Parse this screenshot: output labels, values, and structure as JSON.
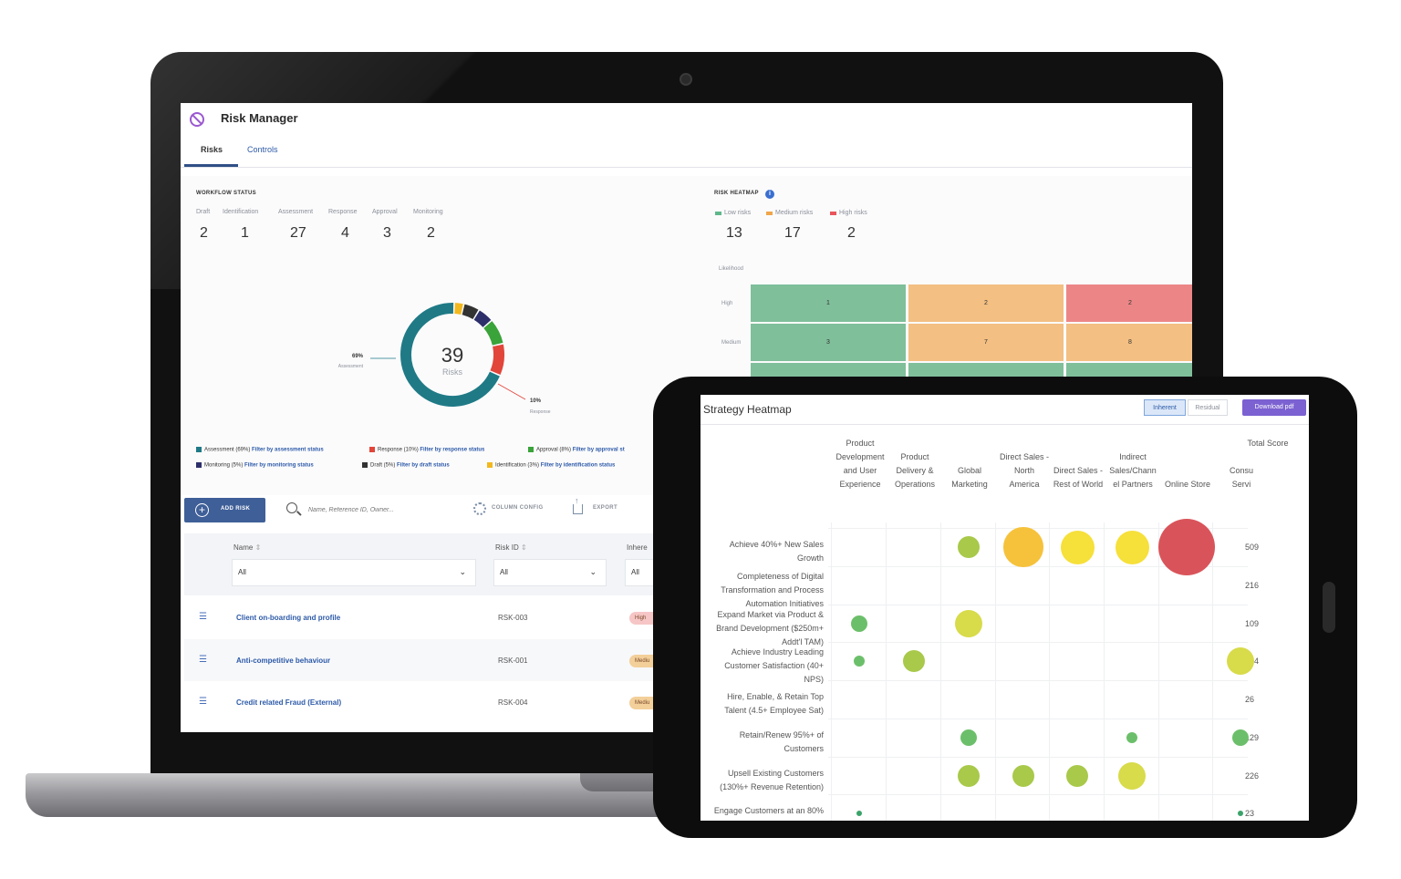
{
  "app": {
    "title": "Risk Manager",
    "tabs": [
      "Risks",
      "Controls"
    ]
  },
  "workflow": {
    "label": "WORKFLOW STATUS",
    "stages": [
      {
        "label": "Draft",
        "value": "2"
      },
      {
        "label": "Identification",
        "value": "1"
      },
      {
        "label": "Assessment",
        "value": "27"
      },
      {
        "label": "Response",
        "value": "4"
      },
      {
        "label": "Approval",
        "value": "3"
      },
      {
        "label": "Monitoring",
        "value": "2"
      }
    ]
  },
  "donut": {
    "total": "39",
    "unit": "Risks",
    "left_callout_pct": "69%",
    "left_callout_label": "Assessment",
    "right_callout_pct": "10%",
    "right_callout_label": "Response",
    "segments": [
      {
        "name": "Assessment",
        "value": 69,
        "color": "#1f7a86"
      },
      {
        "name": "Response",
        "value": 10,
        "color": "#e2453a"
      },
      {
        "name": "Approval",
        "value": 8,
        "color": "#3aa33a"
      },
      {
        "name": "Monitoring",
        "value": 5,
        "color": "#2d2f6b"
      },
      {
        "name": "Draft",
        "value": 5,
        "color": "#333333"
      },
      {
        "name": "Identification",
        "value": 3,
        "color": "#f2b81f"
      }
    ],
    "legend": [
      {
        "text": "Assessment (69%)",
        "link": "Filter by assessment status",
        "color": "#1f7a86"
      },
      {
        "text": "Response (10%)",
        "link": "Filter by response status",
        "color": "#e2453a"
      },
      {
        "text": "Approval (8%)",
        "link": "Filter by approval st",
        "color": "#3aa33a"
      },
      {
        "text": "Monitoring (5%)",
        "link": "Filter by monitoring status",
        "color": "#2d2f6b"
      },
      {
        "text": "Draft (5%)",
        "link": "Filter by draft status",
        "color": "#333333"
      },
      {
        "text": "Identification (3%)",
        "link": "Filter by identification status",
        "color": "#f2b81f"
      }
    ]
  },
  "risk_heatmap": {
    "label": "RISK HEATMAP",
    "legend": [
      {
        "label": "Low risks",
        "value": "13",
        "color": "#5fb88a"
      },
      {
        "label": "Medium risks",
        "value": "17",
        "color": "#f0a64a"
      },
      {
        "label": "High risks",
        "value": "2",
        "color": "#e8555a"
      }
    ],
    "y_axis": "Likelihood",
    "rows": [
      {
        "label": "High",
        "cells": [
          "1",
          "2",
          "2"
        ]
      },
      {
        "label": "Medium",
        "cells": [
          "3",
          "7",
          "8"
        ]
      }
    ],
    "colors": {
      "green": "#7fbf9a",
      "orange": "#f3bf82",
      "red": "#ec8686"
    }
  },
  "toolbar": {
    "add_label": "ADD RISK",
    "search_placeholder": "Name, Reference ID, Owner...",
    "column_config": "COLUMN CONFIG",
    "export": "EXPORT"
  },
  "table": {
    "headers": {
      "name": "Name",
      "risk_id": "Risk ID",
      "inherent": "Inhere"
    },
    "filters": {
      "name": "All",
      "risk_id": "All",
      "inherent": "All"
    },
    "rows": [
      {
        "name": "Client on-boarding and profile",
        "id": "RSK-003",
        "badge": "High",
        "badge_color": "#f6c6c6"
      },
      {
        "name": "Anti-competitive behaviour",
        "id": "RSK-001",
        "badge": "Mediu",
        "badge_color": "#f3cf9a"
      },
      {
        "name": "Credit related Fraud (External)",
        "id": "RSK-004",
        "badge": "Mediu",
        "badge_color": "#f3cf9a"
      }
    ]
  },
  "strategy_heatmap": {
    "title": "Strategy Heatmap",
    "toggle_inherent": "Inherent",
    "toggle_residual": "Residual",
    "download": "Download pdf",
    "columns": [
      "Product\nDevelopment\nand User\nExperience",
      "Product\nDelivery &\nOperations",
      "Global\nMarketing",
      "Direct Sales -\nNorth\nAmerica",
      "Direct Sales -\nRest of World",
      "Indirect\nSales/Chann\nel Partners",
      "Online Store",
      "Consu\nServi"
    ],
    "total_score_label": "Total Score",
    "rows": [
      {
        "label": "Achieve 40%+ New Sales\nGrowth",
        "score": "509"
      },
      {
        "label": "Completeness of Digital\nTransformation and Process\nAutomation Initiatives",
        "score": "216"
      },
      {
        "label": "Expand Market via Product &\nBrand Development ($250m+\nAddt'l TAM)",
        "score": "109"
      },
      {
        "label": "Achieve Industry Leading\nCustomer Satisfaction (40+\nNPS)",
        "score": "194"
      },
      {
        "label": "Hire, Enable, & Retain Top\nTalent (4.5+ Employee Sat)",
        "score": "26"
      },
      {
        "label": "Retain/Renew 95%+ of\nCustomers",
        "score": "129"
      },
      {
        "label": "Upsell Existing Customers\n(130%+ Revenue Retention)",
        "score": "226"
      },
      {
        "label": "Engage Customers at an 80%",
        "score": "23"
      }
    ],
    "bubbles": [
      {
        "row": 0,
        "col": 2,
        "size": 3,
        "color": "#a8c94a"
      },
      {
        "row": 0,
        "col": 3,
        "size": 6,
        "color": "#f6c23c"
      },
      {
        "row": 0,
        "col": 4,
        "size": 5,
        "color": "#f6e03a"
      },
      {
        "row": 0,
        "col": 5,
        "size": 5,
        "color": "#f6e03a"
      },
      {
        "row": 0,
        "col": 6,
        "size": 9,
        "color": "#d9545a"
      },
      {
        "row": 2,
        "col": 0,
        "size": 2,
        "color": "#6cbf6a"
      },
      {
        "row": 2,
        "col": 2,
        "size": 4,
        "color": "#d8db4a"
      },
      {
        "row": 3,
        "col": 0,
        "size": 1,
        "color": "#6cbf6a"
      },
      {
        "row": 3,
        "col": 1,
        "size": 3,
        "color": "#a8c94a"
      },
      {
        "row": 3,
        "col": 7,
        "size": 4,
        "color": "#d8db4a"
      },
      {
        "row": 5,
        "col": 2,
        "size": 2,
        "color": "#6cbf6a"
      },
      {
        "row": 5,
        "col": 5,
        "size": 1,
        "color": "#6cbf6a"
      },
      {
        "row": 5,
        "col": 7,
        "size": 2,
        "color": "#6cbf6a"
      },
      {
        "row": 6,
        "col": 2,
        "size": 3,
        "color": "#a8c94a"
      },
      {
        "row": 6,
        "col": 3,
        "size": 3,
        "color": "#a8c94a"
      },
      {
        "row": 6,
        "col": 4,
        "size": 3,
        "color": "#a8c94a"
      },
      {
        "row": 6,
        "col": 5,
        "size": 4,
        "color": "#d8db4a"
      },
      {
        "row": 7,
        "col": 0,
        "size": 0,
        "color": "#3aa36a"
      },
      {
        "row": 7,
        "col": 7,
        "size": 0,
        "color": "#3aa36a"
      }
    ]
  }
}
